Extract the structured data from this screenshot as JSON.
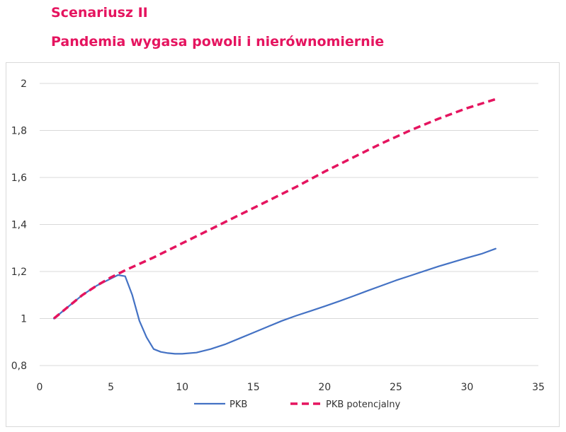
{
  "header": {
    "title": "Scenariusz II",
    "subtitle": "Pandemia wygasa powoli i nierównomiernie"
  },
  "chart_data": {
    "type": "line",
    "x_ticks": [
      "0",
      "5",
      "10",
      "15",
      "20",
      "25",
      "30",
      "35"
    ],
    "y_ticks": [
      "0,8",
      "1",
      "1,2",
      "1,4",
      "1,6",
      "1,8",
      "2"
    ],
    "xlim": [
      0,
      35
    ],
    "ylim": [
      0.8,
      2
    ],
    "grid": true,
    "legend_position": "bottom",
    "series": [
      {
        "name": "PKB",
        "color": "#4472c4",
        "style": "solid",
        "x": [
          1,
          2,
          3,
          4,
          5,
          5.5,
          6,
          6.5,
          7,
          7.5,
          8,
          8.5,
          9,
          9.5,
          10,
          11,
          12,
          13,
          14,
          15,
          16,
          17,
          18,
          19,
          20,
          21,
          22,
          23,
          24,
          25,
          26,
          27,
          28,
          29,
          30,
          31,
          32
        ],
        "y": [
          1.0,
          1.05,
          1.1,
          1.14,
          1.17,
          1.185,
          1.18,
          1.1,
          0.99,
          0.92,
          0.87,
          0.858,
          0.853,
          0.85,
          0.85,
          0.855,
          0.87,
          0.89,
          0.915,
          0.94,
          0.965,
          0.99,
          1.012,
          1.032,
          1.052,
          1.073,
          1.095,
          1.118,
          1.14,
          1.162,
          1.182,
          1.202,
          1.222,
          1.24,
          1.258,
          1.275,
          1.297
        ]
      },
      {
        "name": "PKB potencjalny",
        "color": "#e5145f",
        "style": "dashed",
        "x": [
          1,
          2,
          3,
          4,
          5,
          6,
          8,
          10,
          12,
          14,
          16,
          18,
          20,
          22,
          24,
          26,
          28,
          30,
          32
        ],
        "y": [
          1.0,
          1.05,
          1.1,
          1.14,
          1.175,
          1.205,
          1.26,
          1.32,
          1.38,
          1.44,
          1.5,
          1.56,
          1.625,
          1.685,
          1.745,
          1.8,
          1.85,
          1.895,
          1.933
        ]
      }
    ]
  }
}
